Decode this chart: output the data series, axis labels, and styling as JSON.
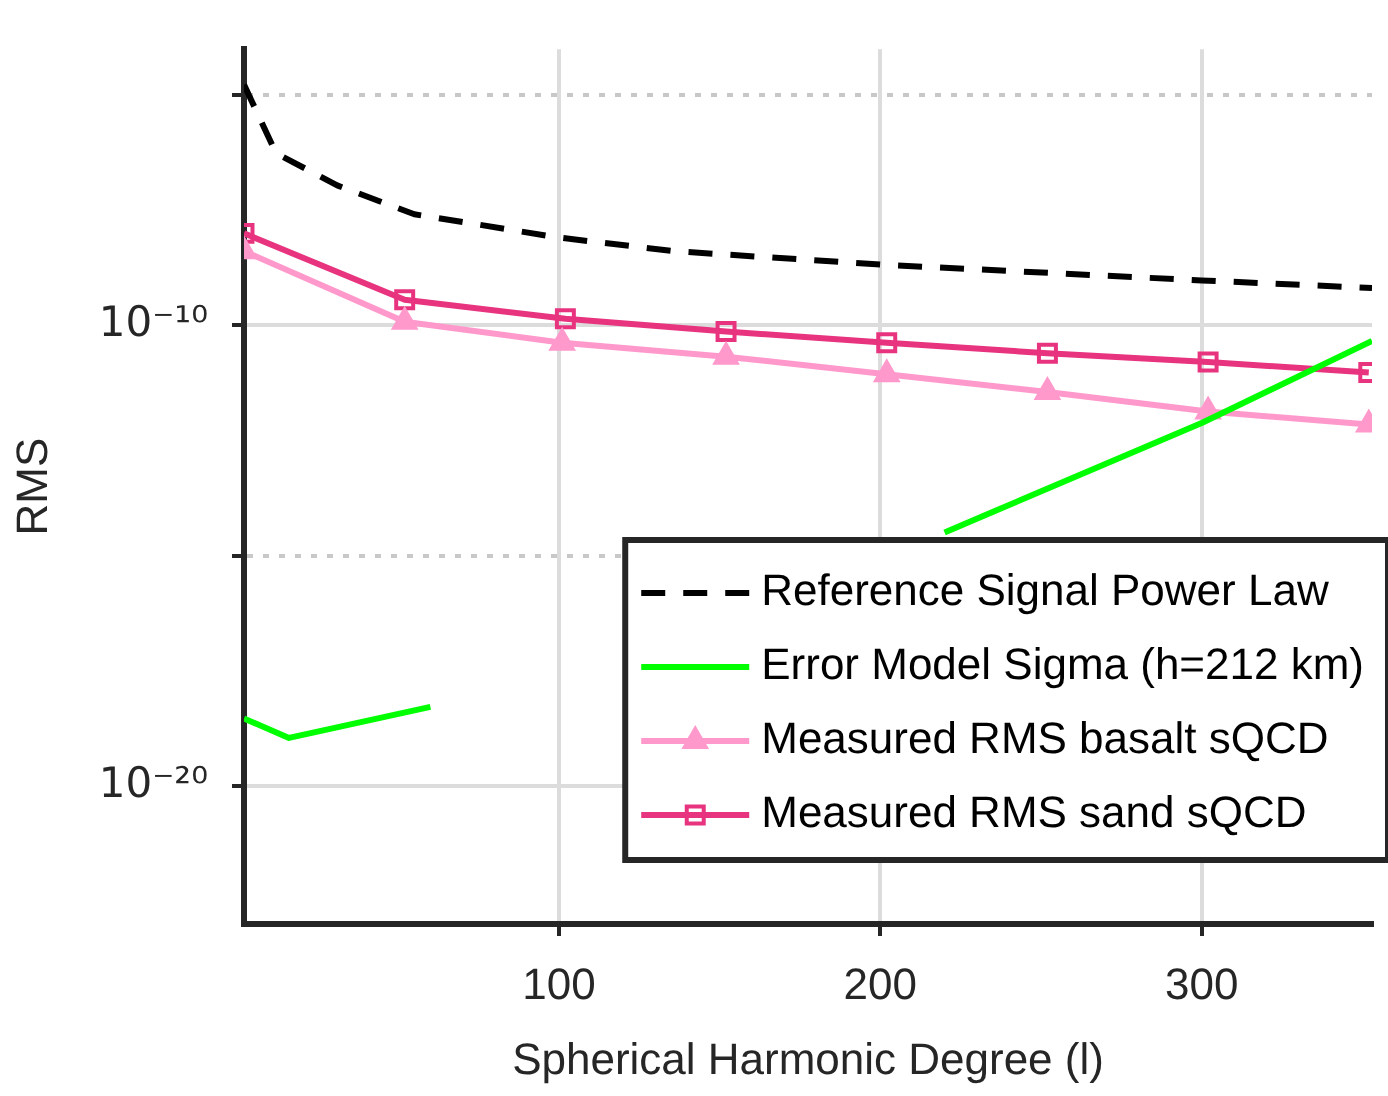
{
  "chart_data": {
    "type": "line",
    "xlabel": "Spherical Harmonic Degree (l)",
    "ylabel": "RMS",
    "log": "y",
    "grid": true,
    "legend": "bottom right",
    "xlim": [
      2,
      353
    ],
    "xticks": [
      100,
      200,
      300
    ],
    "ylim": [
      1e-23,
      0.0001
    ],
    "yticks": [
      {
        "value": 1e-20,
        "label": "10⁻²⁰"
      },
      {
        "value": 1e-15,
        "label": null
      },
      {
        "value": 1e-10,
        "label": "10⁻¹⁰"
      },
      {
        "value": 1e-05,
        "label": null
      }
    ],
    "series": [
      {
        "name": "Reference Signal Power Law",
        "color": "#000000",
        "line_style": "dashed",
        "marker": "none",
        "x": [
          2,
          12,
          31,
          55,
          100,
          136,
          200,
          300,
          353
        ],
        "values": [
          1.7e-05,
          5.5e-07,
          1.1e-07,
          2.6e-08,
          8.1e-09,
          4.1e-09,
          2.1e-09,
          9.5e-10,
          6.5e-10
        ]
      },
      {
        "name": "Error Model Sigma (h=212 km)",
        "color": "#00ff00",
        "line_style": "solid",
        "marker": "none",
        "x": [
          2,
          16,
          60,
          130,
          220,
          300,
          353
        ],
        "values": [
          2.9e-19,
          1.1e-19,
          5.2e-19,
          null,
          3.2e-15,
          7.6e-13,
          4.6e-11
        ]
      },
      {
        "name": "Measured RMS basalt sQCD",
        "color": "#ff99cc",
        "line_style": "solid",
        "marker": "triangle",
        "x": [
          2,
          52,
          101,
          152,
          202,
          252,
          302,
          352
        ],
        "values": [
          4.1e-09,
          1.2e-10,
          4.2e-11,
          2.1e-11,
          8.7e-12,
          3.6e-12,
          1.35e-12,
          7.1e-13
        ]
      },
      {
        "name": "Measured RMS sand sQCD",
        "color": "#e8337f",
        "line_style": "solid",
        "marker": "square",
        "x": [
          2,
          52,
          102,
          152,
          202,
          252,
          302,
          352
        ],
        "values": [
          1e-08,
          3.6e-10,
          1.4e-10,
          7.4e-11,
          4.2e-11,
          2.5e-11,
          1.6e-11,
          9.5e-12
        ]
      }
    ]
  }
}
